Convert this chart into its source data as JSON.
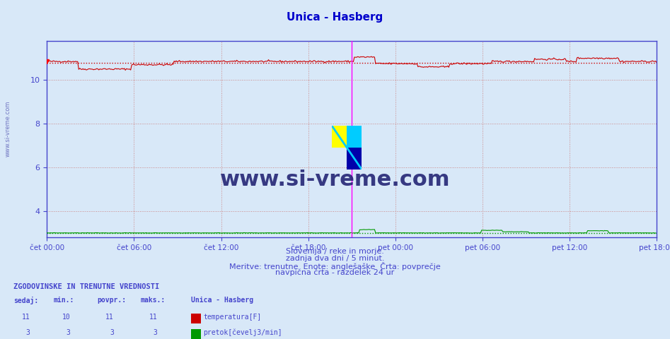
{
  "title": "Unica - Hasberg",
  "title_color": "#0000cc",
  "bg_color": "#d8e8f8",
  "plot_bg_color": "#d8e8f8",
  "grid_color": "#cc8888",
  "axis_color": "#4444cc",
  "tick_color": "#4444cc",
  "ylim": [
    2.8,
    11.8
  ],
  "yticks": [
    4,
    6,
    8,
    10
  ],
  "n_points": 576,
  "temp_color": "#cc0000",
  "flow_color": "#009900",
  "avg_temp": 10.8,
  "avg_flow": 3.0,
  "xtick_labels": [
    "čet 00:00",
    "čet 06:00",
    "čet 12:00",
    "čet 18:00",
    "pet 00:00",
    "pet 06:00",
    "pet 12:00",
    "pet 18:00"
  ],
  "bottom_text1": "Slovenija / reke in morje.",
  "bottom_text2": "zadnja dva dni / 5 minut.",
  "bottom_text3": "Meritve: trenutne  Enote: anglešaške  Črta: povprečje",
  "bottom_text4": "navpična črta - razdelek 24 ur",
  "bottom_text_color": "#4444cc",
  "table_header": "ZGODOVINSKE IN TRENUTNE VREDNOSTI",
  "table_col1": "sedaj:",
  "table_col2": "min.:",
  "table_col3": "povpr.:",
  "table_col4": "maks.:",
  "table_col5": "Unica - Hasberg",
  "row1_vals": [
    11,
    10,
    11,
    11
  ],
  "row1_label": "temperatura[F]",
  "row1_color": "#cc0000",
  "row2_vals": [
    3,
    3,
    3,
    3
  ],
  "row2_label": "pretok[čevelj3/min]",
  "row2_color": "#009900",
  "table_color": "#4444cc",
  "watermark_text": "www.si-vreme.com",
  "watermark_color": "#1a1a6e",
  "sidebar_text": "www.si-vreme.com",
  "sidebar_color": "#4444aa",
  "vline_color": "#ff00ff",
  "vline_pos": 0.5
}
